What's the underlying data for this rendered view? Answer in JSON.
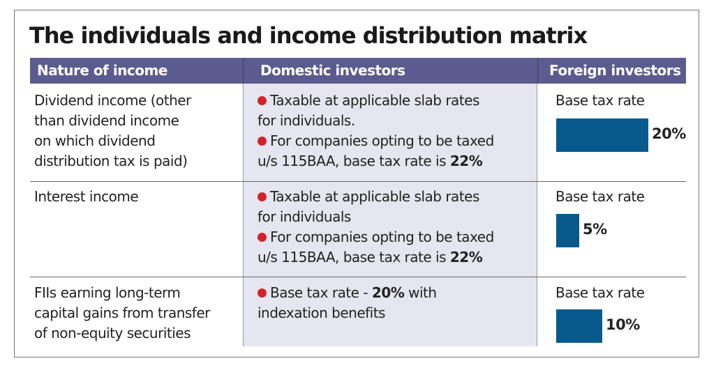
{
  "title": "The individuals and income distribution matrix",
  "headers": [
    "Nature of income",
    "Domestic investors",
    "Foreign investors"
  ],
  "rows": [
    {
      "nature": [
        "Dividend income (other",
        "than dividend income",
        "on which dividend",
        "distribution tax is paid)"
      ],
      "domestic": [
        {
          "bullet": true,
          "text": "Taxable at applicable slab rates"
        },
        {
          "bullet": false,
          "text": "for individuals."
        },
        {
          "bullet": true,
          "text": "For companies opting to be taxed"
        },
        {
          "bullet": false,
          "text": "u/s 115BAA, base tax rate is ",
          "bold": "22%"
        }
      ],
      "foreign_label": "Base tax rate",
      "foreign_value": "20%"
    },
    {
      "nature": [
        "Interest income"
      ],
      "domestic": [
        {
          "bullet": true,
          "text": "Taxable at applicable slab rates"
        },
        {
          "bullet": false,
          "text": "for individuals"
        },
        {
          "bullet": true,
          "text": "For companies opting to be taxed"
        },
        {
          "bullet": false,
          "text": "u/s 115BAA, base tax rate is ",
          "bold": "22%"
        }
      ],
      "foreign_label": "Base tax rate",
      "foreign_value": "5%"
    },
    {
      "nature": [
        "FIIs earning long-term",
        "capital gains from transfer",
        "of non-equity securities"
      ],
      "domestic": [
        {
          "bullet": true,
          "text": "Base tax rate - ",
          "bold": "20%",
          "after": " with"
        },
        {
          "bullet": false,
          "text": "indexation benefits"
        }
      ],
      "foreign_label": "Base tax rate",
      "foreign_value": "10%"
    }
  ],
  "colors": {
    "header": "#5b5b8f",
    "domestic_bg": "#e6e6f0",
    "bar": "#085a8c",
    "bullet": "#d2232a"
  },
  "chart_data": {
    "type": "bar",
    "title": "Base tax rate (Foreign investors)",
    "categories": [
      "Dividend income",
      "Interest income",
      "FIIs long-term capital gains (non-equity)"
    ],
    "values": [
      20,
      5,
      10
    ],
    "unit": "%"
  }
}
